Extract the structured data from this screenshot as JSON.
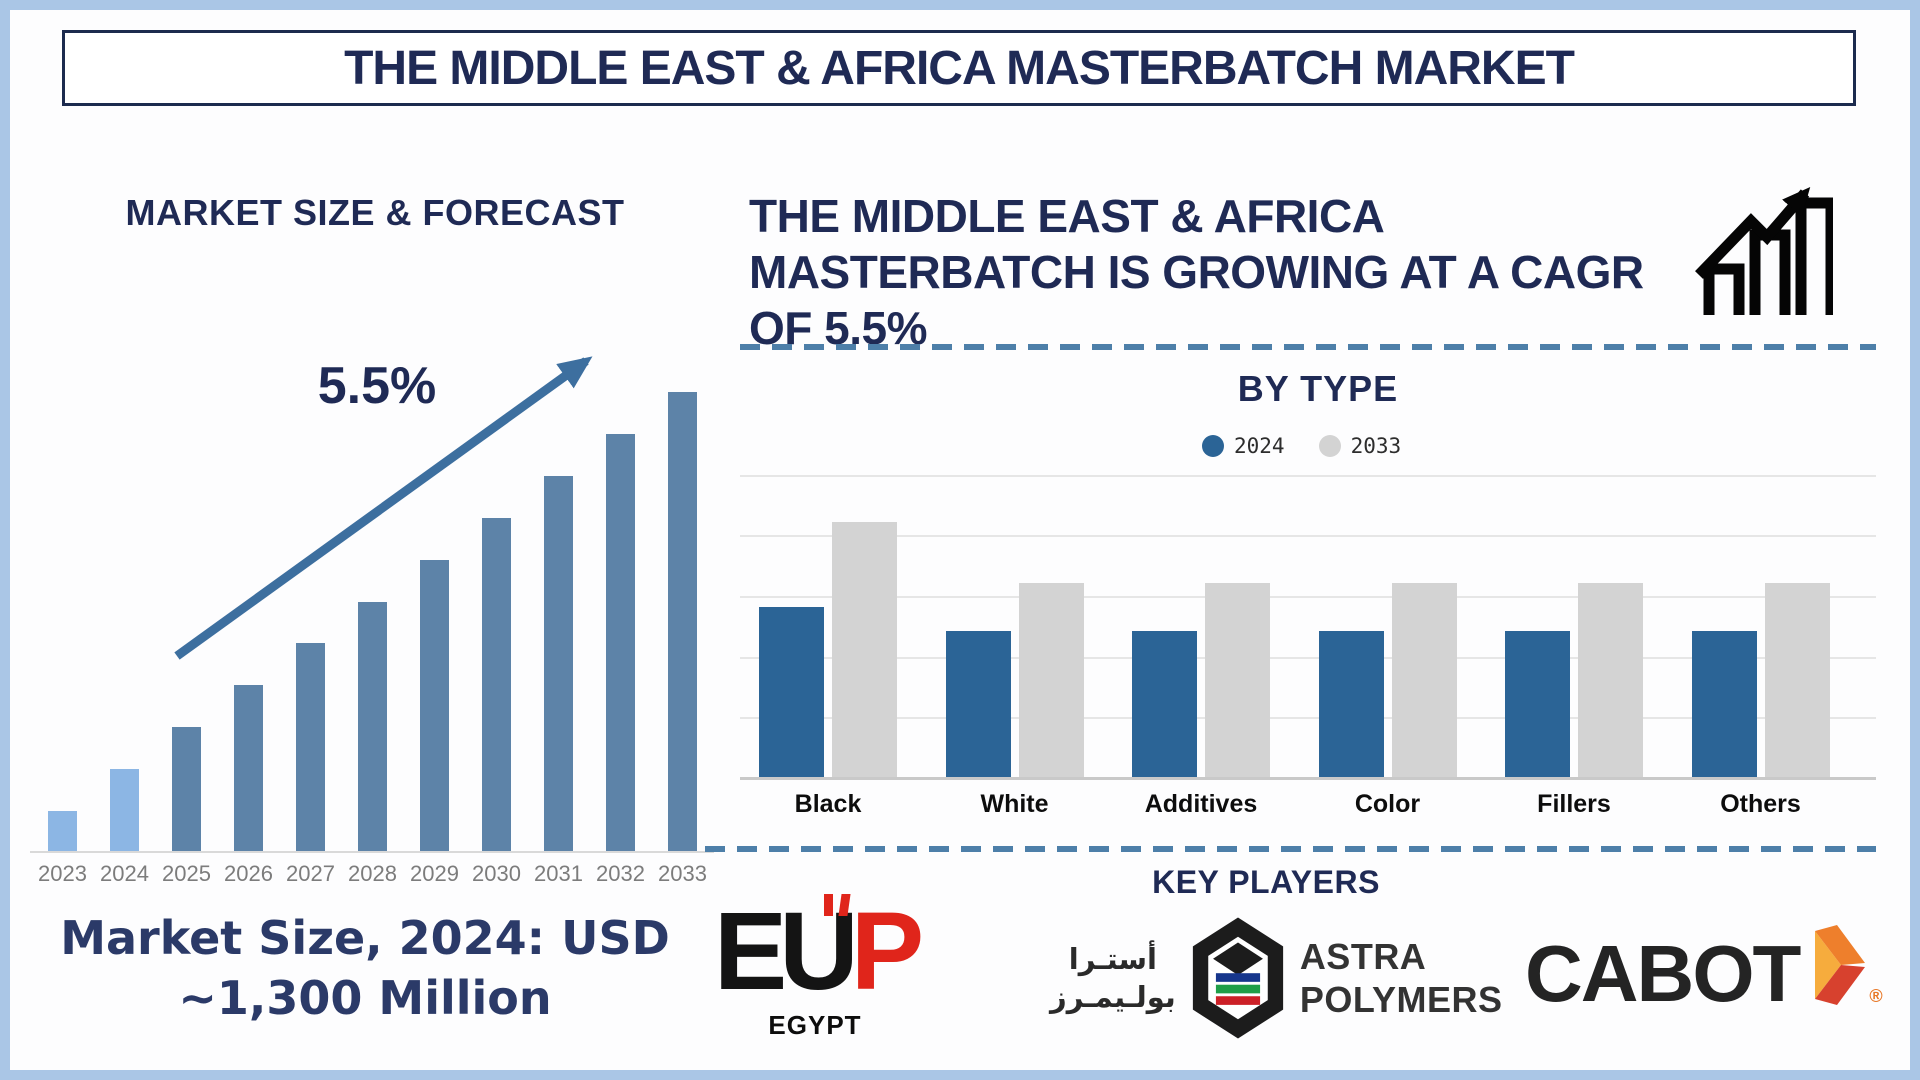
{
  "page": {
    "title": "THE MIDDLE EAST & AFRICA MASTERBATCH MARKET"
  },
  "colors": {
    "navy_heading": "#1f2a55",
    "frame_light_blue": "#aac6e6",
    "dashed_divider_blue": "#4d7fa9",
    "forecast_bar_steel_blue": "#5d83a8",
    "forecast_bar_light_blue": "#8cb6e4",
    "trend_arrow_blue": "#3d6f9f",
    "year_label_gray": "#7c7c7c"
  },
  "left_panel": {
    "market_size_line1": "Market Size, 2024: USD",
    "market_size_line2": "~1,300 Million"
  },
  "right_panel": {
    "headline_line1": "THE MIDDLE EAST & AFRICA",
    "headline_line2": "MASTERBATCH IS GROWING AT A CAGR",
    "headline_line3": "OF 5.5%",
    "key_players_title": "KEY PLAYERS"
  },
  "key_players": {
    "eup": {
      "letters": [
        "E",
        "U",
        "P"
      ],
      "sub": "EGYPT"
    },
    "astra": {
      "arabic_line1": "أستـرا",
      "arabic_line2": "بولـيمـرز",
      "latin_line1": "ASTRA",
      "latin_line2": "POLYMERS"
    },
    "cabot": {
      "name": "CABOT",
      "reg_mark": "®"
    }
  },
  "chart_data": [
    {
      "type": "bar",
      "title": "MARKET SIZE & FORECAST",
      "annotation": "5.5%",
      "categories": [
        "2023",
        "2024",
        "2025",
        "2026",
        "2027",
        "2028",
        "2029",
        "2030",
        "2031",
        "2032",
        "2033"
      ],
      "values": [
        1,
        2,
        3,
        4,
        5,
        6,
        7,
        8,
        9,
        10,
        11
      ],
      "unit": "relative height (illustrative ~5.5% CAGR growth; 2024 ≈ USD 1,300 Million)",
      "ylim": [
        0,
        11
      ],
      "grid": false,
      "bar_color": "#5d83a8",
      "highlight_color": "#8cb6e4",
      "highlight_years": [
        "2023",
        "2024"
      ]
    },
    {
      "type": "bar",
      "title": "BY TYPE",
      "categories": [
        "Black",
        "White",
        "Additives",
        "Color",
        "Fillers",
        "Others"
      ],
      "series": [
        {
          "name": "2024",
          "color": "#2b6496",
          "values": [
            2.8,
            2.4,
            2.4,
            2.4,
            2.4,
            2.4
          ]
        },
        {
          "name": "2033",
          "color": "#d3d3d3",
          "values": [
            4.2,
            3.2,
            3.2,
            3.2,
            3.2,
            3.2
          ]
        }
      ],
      "unit": "relative gridline units (values estimated from chart)",
      "ylim": [
        0,
        5
      ],
      "grid": true,
      "legend_position": "top"
    }
  ]
}
